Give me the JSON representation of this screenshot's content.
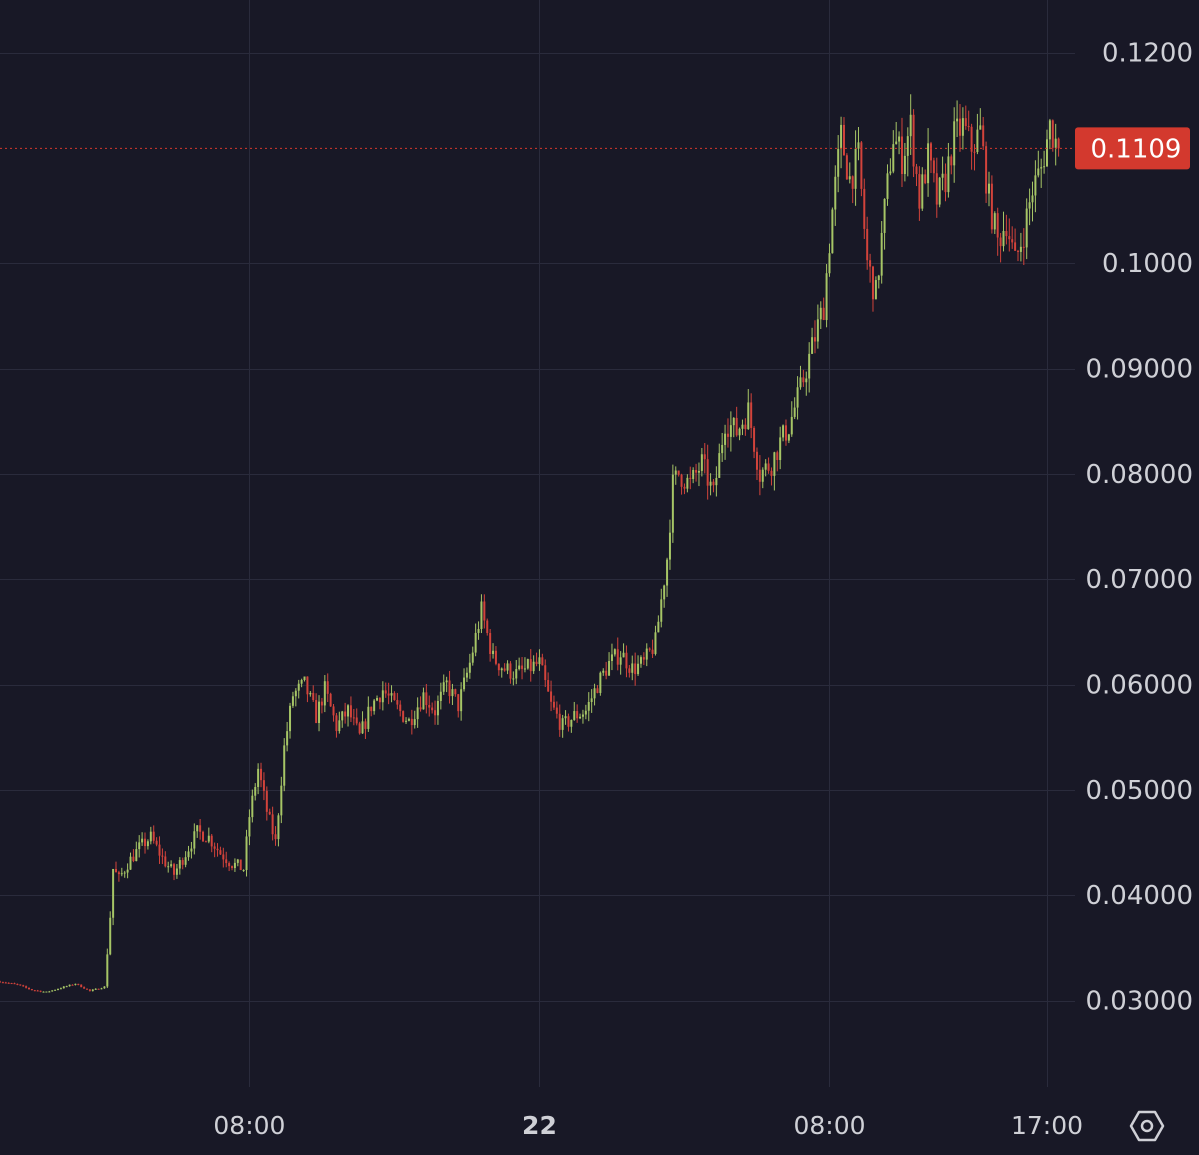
{
  "chart_data": {
    "type": "candlestick",
    "title": "",
    "xlabel": "",
    "ylabel": "",
    "ylim": [
      0.026,
      0.1224
    ],
    "y_ticks": [
      "0.1200",
      "0.1000",
      "0.09000",
      "0.08000",
      "0.07000",
      "0.06000",
      "0.05000",
      "0.04000",
      "0.03000"
    ],
    "y_tick_values": [
      0.12,
      0.1,
      0.09,
      0.08,
      0.07,
      0.06,
      0.05,
      0.04,
      0.03
    ],
    "x_ticks": [
      {
        "label": "08:00",
        "bold": false
      },
      {
        "label": "22",
        "bold": true
      },
      {
        "label": "08:00",
        "bold": false
      },
      {
        "label": "17:00",
        "bold": false
      }
    ],
    "x_tick_positions": [
      8,
      18,
      28,
      35.5
    ],
    "x_range_hours": [
      -0.6,
      36.2
    ],
    "current_price": "0.1109",
    "current_price_value": 0.1109,
    "grid": true,
    "path_hours": [
      -0.6,
      0.0,
      0.5,
      1.0,
      1.5,
      2.0,
      2.5,
      3.0,
      3.2,
      3.3,
      3.5,
      3.8,
      4.2,
      4.6,
      5.0,
      5.4,
      5.8,
      6.2,
      6.6,
      7.0,
      7.4,
      7.8,
      8.0,
      8.3,
      8.6,
      8.9,
      9.2,
      9.5,
      9.9,
      10.3,
      10.6,
      11.0,
      11.4,
      11.8,
      12.2,
      12.6,
      13.0,
      13.5,
      14.0,
      14.4,
      14.8,
      15.2,
      15.6,
      16.0,
      16.4,
      16.8,
      17.2,
      17.6,
      18.0,
      18.4,
      18.8,
      19.2,
      19.6,
      20.0,
      20.4,
      20.8,
      21.2,
      21.6,
      22.0,
      22.4,
      22.6,
      22.8,
      23.2,
      23.6,
      24.0,
      24.4,
      24.8,
      25.2,
      25.6,
      26.0,
      26.3,
      26.6,
      27.0,
      27.4,
      27.8,
      28.1,
      28.4,
      28.7,
      29.0,
      29.3,
      29.6,
      29.9,
      30.2,
      30.5,
      30.8,
      31.1,
      31.4,
      31.7,
      32.0,
      32.3,
      32.6,
      32.9,
      33.2,
      33.5,
      33.8,
      34.1,
      34.4,
      34.7,
      35.0,
      35.3,
      35.6,
      35.9
    ],
    "path_values": [
      0.0318,
      0.0315,
      0.031,
      0.0308,
      0.0312,
      0.0316,
      0.0309,
      0.0313,
      0.038,
      0.0425,
      0.0415,
      0.043,
      0.0445,
      0.0455,
      0.0435,
      0.042,
      0.044,
      0.046,
      0.0455,
      0.044,
      0.043,
      0.0425,
      0.0475,
      0.052,
      0.048,
      0.045,
      0.054,
      0.059,
      0.06,
      0.057,
      0.0595,
      0.056,
      0.0575,
      0.055,
      0.058,
      0.0595,
      0.058,
      0.0565,
      0.059,
      0.0575,
      0.06,
      0.058,
      0.062,
      0.067,
      0.0625,
      0.0615,
      0.061,
      0.0615,
      0.062,
      0.058,
      0.056,
      0.057,
      0.0575,
      0.06,
      0.062,
      0.063,
      0.0615,
      0.062,
      0.064,
      0.072,
      0.079,
      0.08,
      0.079,
      0.081,
      0.078,
      0.085,
      0.084,
      0.086,
      0.08,
      0.081,
      0.083,
      0.0845,
      0.088,
      0.092,
      0.096,
      0.105,
      0.112,
      0.108,
      0.11,
      0.1,
      0.097,
      0.105,
      0.112,
      0.11,
      0.113,
      0.106,
      0.11,
      0.106,
      0.108,
      0.112,
      0.113,
      0.111,
      0.1125,
      0.106,
      0.102,
      0.104,
      0.1,
      0.103,
      0.107,
      0.109,
      0.113,
      0.1109
    ]
  },
  "settings_icon": "settings-hexagon-icon",
  "colors": {
    "background": "#181826",
    "grid": "#2a2b3c",
    "up": "#a6c566",
    "down": "#d2433b",
    "axis_text": "#cfd0d6",
    "price_label_bg": "#d3392e",
    "price_label_text": "#ffffff"
  }
}
